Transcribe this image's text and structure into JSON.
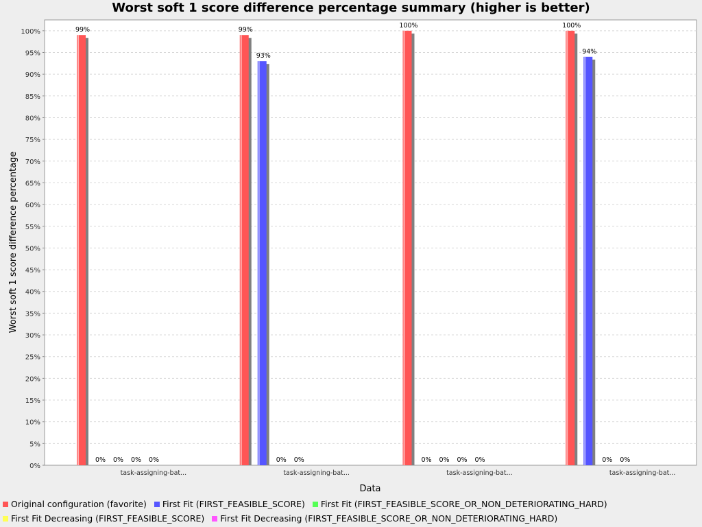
{
  "chart_data": {
    "type": "bar",
    "title": "Worst soft 1 score difference percentage summary (higher is better)",
    "xlabel": "Data",
    "ylabel": "Worst soft 1 score difference percentage",
    "ylim": [
      0,
      102.5
    ],
    "yticks": [
      0,
      5,
      10,
      15,
      20,
      25,
      30,
      35,
      40,
      45,
      50,
      55,
      60,
      65,
      70,
      75,
      80,
      85,
      90,
      95,
      100
    ],
    "grid": true,
    "legend_position": "bottom",
    "categories": [
      "task-assigning-bat...",
      "task-assigning-bat...",
      "task-assigning-bat...",
      "task-assigning-bat..."
    ],
    "series": [
      {
        "name": "Original configuration (favorite)",
        "color": "#ff5555",
        "values": [
          99,
          99,
          100,
          100
        ],
        "labels": [
          "99%",
          "99%",
          "100%",
          "100%"
        ]
      },
      {
        "name": "First Fit (FIRST_FEASIBLE_SCORE)",
        "color": "#5555ff",
        "values": [
          0,
          93,
          0,
          94
        ],
        "labels": [
          "0%",
          "93%",
          "0%",
          "94%"
        ]
      },
      {
        "name": "First Fit (FIRST_FEASIBLE_SCORE_OR_NON_DETERIORATING_HARD)",
        "color": "#55ff55",
        "values": [
          0,
          0,
          0,
          0
        ],
        "labels": [
          "0%",
          "0%",
          "0%",
          "0%"
        ]
      },
      {
        "name": "First Fit Decreasing (FIRST_FEASIBLE_SCORE)",
        "color": "#ffff55",
        "values": [
          0,
          0,
          0,
          0
        ],
        "labels": [
          "0%",
          "0%",
          "0%",
          "0%"
        ]
      },
      {
        "name": "First Fit Decreasing (FIRST_FEASIBLE_SCORE_OR_NON_DETERIORATING_HARD)",
        "color": "#ff55ff",
        "values": [
          0,
          null,
          0,
          null
        ],
        "labels": [
          "0%",
          "",
          "0%",
          ""
        ]
      }
    ]
  }
}
